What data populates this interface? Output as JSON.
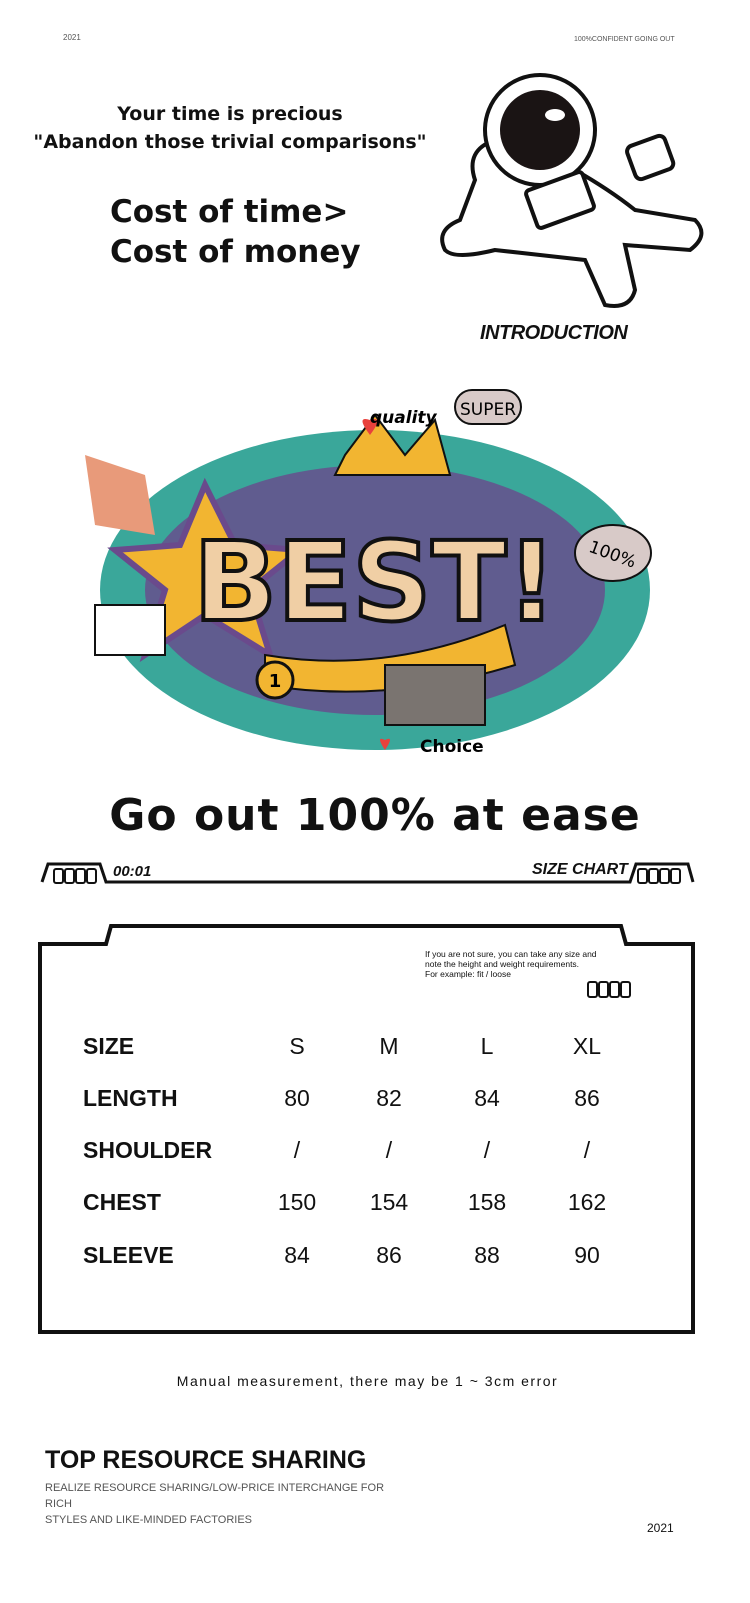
{
  "header": {
    "year": "2021",
    "tagline": "100%CONFIDENT GOING OUT"
  },
  "intro": {
    "line1": "Your time is precious",
    "line2": "\"Abandon those trivial comparisons\"",
    "big1": "Cost of time>",
    "big2": "Cost of money",
    "label": "INTRODUCTION"
  },
  "art": {
    "words": [
      "quality",
      "SUPER",
      "BEST!",
      "100%",
      "Choice",
      "1"
    ],
    "colors": {
      "teal": "#3aa79a",
      "yellow": "#f2b531",
      "red": "#e8413c",
      "pink": "#e46a8d",
      "beige": "#f0cfa5",
      "purple": "#6a4a8c",
      "gray": "#7a7470"
    }
  },
  "slogan": "Go out 100% at ease",
  "bar": {
    "left_label": "00:01",
    "right_label": "SIZE CHART"
  },
  "size_chart": {
    "note": [
      "If you are not sure, you can take any size and",
      "note the height and weight requirements.",
      "For example: fit / loose"
    ],
    "rows": [
      {
        "label": "SIZE",
        "values": [
          "S",
          "M",
          "L",
          "XL"
        ]
      },
      {
        "label": "LENGTH",
        "values": [
          "80",
          "82",
          "84",
          "86"
        ]
      },
      {
        "label": "SHOULDER",
        "values": [
          "/",
          "/",
          "/",
          "/"
        ]
      },
      {
        "label": "CHEST",
        "values": [
          "150",
          "154",
          "158",
          "162"
        ]
      },
      {
        "label": "SLEEVE",
        "values": [
          "84",
          "86",
          "88",
          "90"
        ]
      }
    ]
  },
  "measurement_note": "Manual measurement, there may be 1 ~ 3cm error",
  "footer": {
    "title": "TOP RESOURCE SHARING",
    "sub1": "REALIZE RESOURCE SHARING/LOW-PRICE INTERCHANGE FOR RICH",
    "sub2": "STYLES AND LIKE-MINDED FACTORIES",
    "year": "2021"
  }
}
